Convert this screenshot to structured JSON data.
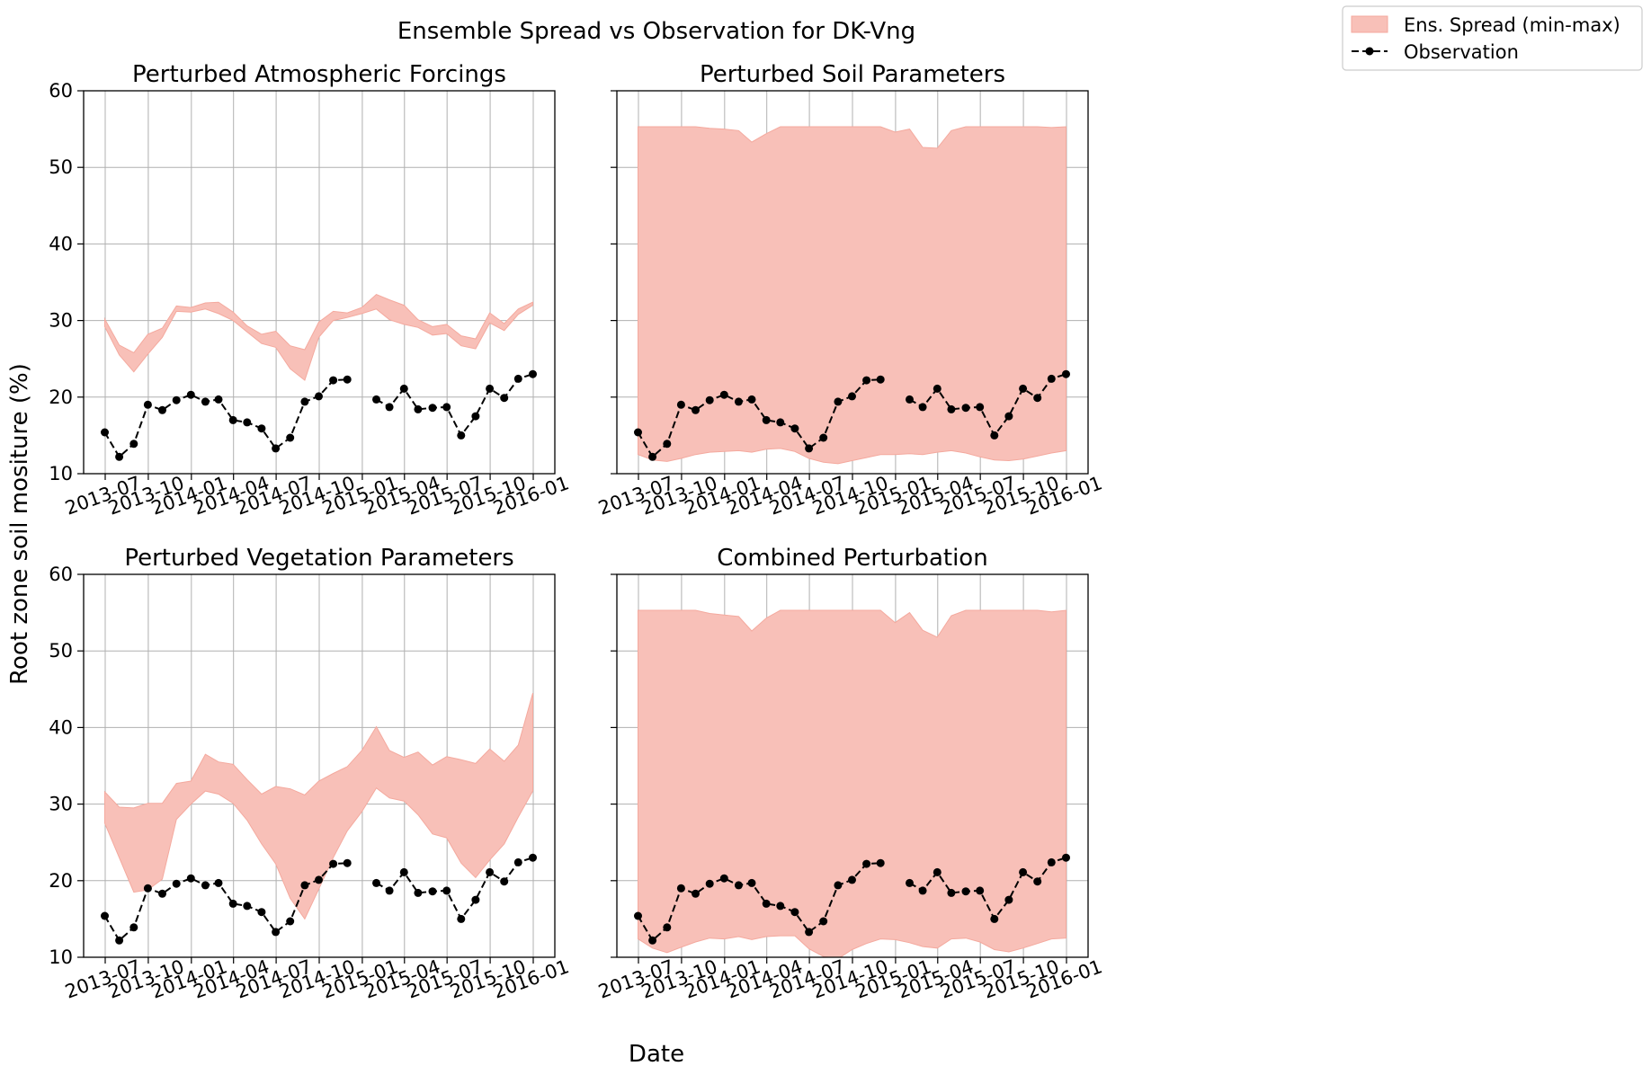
{
  "figure": {
    "suptitle": "Ensemble Spread vs Observation for DK-Vng",
    "xlabel": "Date",
    "ylabel": "Root zone soil mositure (%)",
    "legend": {
      "placement": "top-right",
      "entries": [
        {
          "label": "Ens. Spread (min-max)",
          "kind": "band",
          "color": "#f8c0b8",
          "edge": "#f4a99e"
        },
        {
          "label": "Observation",
          "kind": "line-marker",
          "color": "#000000"
        }
      ]
    }
  },
  "chart_data": [
    {
      "type": "area",
      "title": "Perturbed Atmospheric Forcings",
      "xlabel": "",
      "ylabel": "",
      "ylim": [
        10,
        60
      ],
      "yticks": [
        "10",
        "20",
        "30",
        "40",
        "50",
        "60"
      ],
      "xticks": [
        "2013-07",
        "2013-10",
        "2014-01",
        "2014-04",
        "2014-07",
        "2014-10",
        "2015-01",
        "2015-04",
        "2015-07",
        "2015-10",
        "2016-01"
      ],
      "grid": true,
      "x": [
        "2013-06-30",
        "2013-07-31",
        "2013-08-31",
        "2013-09-30",
        "2013-10-31",
        "2013-11-30",
        "2013-12-31",
        "2014-01-31",
        "2014-02-28",
        "2014-03-31",
        "2014-04-30",
        "2014-05-31",
        "2014-06-30",
        "2014-07-31",
        "2014-08-31",
        "2014-09-30",
        "2014-10-31",
        "2014-11-30",
        "2014-12-31",
        "2015-01-31",
        "2015-02-28",
        "2015-03-31",
        "2015-04-30",
        "2015-05-31",
        "2015-06-30",
        "2015-07-31",
        "2015-08-31",
        "2015-09-30",
        "2015-10-31",
        "2015-11-30",
        "2015-12-31"
      ],
      "series": [
        {
          "name": "Ens. Spread (min-max)",
          "kind": "band",
          "upper": [
            30.2,
            26.8,
            25.8,
            28.2,
            29.0,
            31.9,
            31.7,
            32.3,
            32.4,
            31.1,
            29.3,
            28.2,
            28.6,
            26.7,
            26.2,
            29.8,
            31.2,
            31.0,
            31.7,
            33.4,
            32.7,
            32.0,
            30.1,
            29.2,
            29.5,
            28.0,
            27.6,
            31.0,
            29.6,
            31.5,
            32.4
          ],
          "lower": [
            29.2,
            25.5,
            23.3,
            25.6,
            27.8,
            31.2,
            31.1,
            31.5,
            30.9,
            30.0,
            28.5,
            27.0,
            26.5,
            23.7,
            22.2,
            27.8,
            30.0,
            30.4,
            30.9,
            31.5,
            30.1,
            29.5,
            29.1,
            28.1,
            28.3,
            26.7,
            26.3,
            29.7,
            28.7,
            30.8,
            32.0
          ]
        },
        {
          "name": "Observation",
          "kind": "line",
          "values": [
            15.4,
            12.2,
            13.9,
            19.0,
            18.3,
            19.6,
            20.3,
            19.4,
            19.7,
            17.0,
            16.7,
            15.9,
            13.3,
            14.7,
            19.4,
            20.1,
            22.2,
            22.3,
            null,
            19.7,
            18.7,
            21.1,
            18.4,
            18.6,
            18.7,
            15.0,
            17.5,
            21.1,
            19.9,
            22.4,
            23.0
          ]
        }
      ]
    },
    {
      "type": "area",
      "title": "Perturbed Soil Parameters",
      "xlabel": "",
      "ylabel": "",
      "ylim": [
        10,
        60
      ],
      "yticks": [],
      "xticks": [
        "2013-07",
        "2013-10",
        "2014-01",
        "2014-04",
        "2014-07",
        "2014-10",
        "2015-01",
        "2015-04",
        "2015-07",
        "2015-10",
        "2016-01"
      ],
      "grid": true,
      "x": [
        "2013-06-30",
        "2013-07-31",
        "2013-08-31",
        "2013-09-30",
        "2013-10-31",
        "2013-11-30",
        "2013-12-31",
        "2014-01-31",
        "2014-02-28",
        "2014-03-31",
        "2014-04-30",
        "2014-05-31",
        "2014-06-30",
        "2014-07-31",
        "2014-08-31",
        "2014-09-30",
        "2014-10-31",
        "2014-11-30",
        "2014-12-31",
        "2015-01-31",
        "2015-02-28",
        "2015-03-31",
        "2015-04-30",
        "2015-05-31",
        "2015-06-30",
        "2015-07-31",
        "2015-08-31",
        "2015-09-30",
        "2015-10-31",
        "2015-11-30",
        "2015-12-31"
      ],
      "series": [
        {
          "name": "Ens. Spread (min-max)",
          "kind": "band",
          "upper": [
            55.3,
            55.3,
            55.3,
            55.3,
            55.3,
            55.1,
            55.0,
            54.8,
            53.3,
            54.4,
            55.3,
            55.3,
            55.3,
            55.3,
            55.3,
            55.3,
            55.3,
            55.3,
            54.6,
            55.0,
            52.6,
            52.5,
            54.8,
            55.3,
            55.3,
            55.3,
            55.3,
            55.3,
            55.3,
            55.2,
            55.3
          ],
          "lower": [
            12.5,
            11.8,
            11.6,
            12.0,
            12.5,
            12.8,
            12.9,
            13.0,
            12.8,
            13.2,
            13.3,
            12.9,
            12.0,
            11.5,
            11.3,
            11.7,
            12.1,
            12.5,
            12.5,
            12.6,
            12.5,
            12.8,
            13.0,
            12.7,
            12.2,
            11.8,
            11.7,
            11.9,
            12.3,
            12.7,
            13.0
          ]
        },
        {
          "name": "Observation",
          "kind": "line",
          "values": [
            15.4,
            12.2,
            13.9,
            19.0,
            18.3,
            19.6,
            20.3,
            19.4,
            19.7,
            17.0,
            16.7,
            15.9,
            13.3,
            14.7,
            19.4,
            20.1,
            22.2,
            22.3,
            null,
            19.7,
            18.7,
            21.1,
            18.4,
            18.6,
            18.7,
            15.0,
            17.5,
            21.1,
            19.9,
            22.4,
            23.0
          ]
        }
      ]
    },
    {
      "type": "area",
      "title": "Perturbed Vegetation Parameters",
      "xlabel": "",
      "ylabel": "",
      "ylim": [
        10,
        60
      ],
      "yticks": [
        "10",
        "20",
        "30",
        "40",
        "50",
        "60"
      ],
      "xticks": [
        "2013-07",
        "2013-10",
        "2014-01",
        "2014-04",
        "2014-07",
        "2014-10",
        "2015-01",
        "2015-04",
        "2015-07",
        "2015-10",
        "2016-01"
      ],
      "grid": true,
      "x": [
        "2013-06-30",
        "2013-07-31",
        "2013-08-31",
        "2013-09-30",
        "2013-10-31",
        "2013-11-30",
        "2013-12-31",
        "2014-01-31",
        "2014-02-28",
        "2014-03-31",
        "2014-04-30",
        "2014-05-31",
        "2014-06-30",
        "2014-07-31",
        "2014-08-31",
        "2014-09-30",
        "2014-10-31",
        "2014-11-30",
        "2014-12-31",
        "2015-01-31",
        "2015-02-28",
        "2015-03-31",
        "2015-04-30",
        "2015-05-31",
        "2015-06-30",
        "2015-07-31",
        "2015-08-31",
        "2015-09-30",
        "2015-10-31",
        "2015-11-30",
        "2015-12-31"
      ],
      "series": [
        {
          "name": "Ens. Spread (min-max)",
          "kind": "band",
          "upper": [
            31.6,
            29.6,
            29.5,
            30.1,
            30.1,
            32.7,
            33.0,
            36.5,
            35.5,
            35.2,
            33.2,
            31.3,
            32.3,
            32.0,
            31.2,
            33.0,
            34.0,
            34.9,
            37.0,
            40.1,
            37.0,
            36.1,
            36.8,
            35.1,
            36.2,
            35.8,
            35.3,
            37.2,
            35.6,
            37.7,
            44.5
          ],
          "lower": [
            27.5,
            23.0,
            18.5,
            18.8,
            20.2,
            28.0,
            30.0,
            31.7,
            31.3,
            30.1,
            27.9,
            24.8,
            22.2,
            17.7,
            15.0,
            18.9,
            23.0,
            26.5,
            29.0,
            32.1,
            30.8,
            30.4,
            28.6,
            26.1,
            25.6,
            22.3,
            20.4,
            22.7,
            24.8,
            28.3,
            31.7
          ]
        },
        {
          "name": "Observation",
          "kind": "line",
          "values": [
            15.4,
            12.2,
            13.9,
            19.0,
            18.3,
            19.6,
            20.3,
            19.4,
            19.7,
            17.0,
            16.7,
            15.9,
            13.3,
            14.7,
            19.4,
            20.1,
            22.2,
            22.3,
            null,
            19.7,
            18.7,
            21.1,
            18.4,
            18.6,
            18.7,
            15.0,
            17.5,
            21.1,
            19.9,
            22.4,
            23.0
          ]
        }
      ]
    },
    {
      "type": "area",
      "title": "Combined Perturbation",
      "xlabel": "",
      "ylabel": "",
      "ylim": [
        10,
        60
      ],
      "yticks": [],
      "xticks": [
        "2013-07",
        "2013-10",
        "2014-01",
        "2014-04",
        "2014-07",
        "2014-10",
        "2015-01",
        "2015-04",
        "2015-07",
        "2015-10",
        "2016-01"
      ],
      "grid": true,
      "x": [
        "2013-06-30",
        "2013-07-31",
        "2013-08-31",
        "2013-09-30",
        "2013-10-31",
        "2013-11-30",
        "2013-12-31",
        "2014-01-31",
        "2014-02-28",
        "2014-03-31",
        "2014-04-30",
        "2014-05-31",
        "2014-06-30",
        "2014-07-31",
        "2014-08-31",
        "2014-09-30",
        "2014-10-31",
        "2014-11-30",
        "2014-12-31",
        "2015-01-31",
        "2015-02-28",
        "2015-03-31",
        "2015-04-30",
        "2015-05-31",
        "2015-06-30",
        "2015-07-31",
        "2015-08-31",
        "2015-09-30",
        "2015-10-31",
        "2015-11-30",
        "2015-12-31"
      ],
      "series": [
        {
          "name": "Ens. Spread (min-max)",
          "kind": "band",
          "upper": [
            55.3,
            55.3,
            55.3,
            55.3,
            55.3,
            54.9,
            54.7,
            54.5,
            52.6,
            54.3,
            55.3,
            55.3,
            55.3,
            55.3,
            55.3,
            55.3,
            55.3,
            55.3,
            53.7,
            55.0,
            52.7,
            51.8,
            54.6,
            55.3,
            55.3,
            55.3,
            55.3,
            55.3,
            55.3,
            55.1,
            55.3
          ],
          "lower": [
            12.4,
            11.2,
            10.6,
            11.3,
            12.0,
            12.5,
            12.4,
            12.7,
            12.3,
            12.7,
            12.8,
            12.8,
            11.1,
            10.1,
            9.8,
            11.0,
            11.8,
            12.4,
            12.3,
            11.9,
            11.4,
            11.2,
            12.4,
            12.5,
            12.0,
            11.0,
            10.7,
            11.2,
            11.8,
            12.4,
            12.5
          ]
        },
        {
          "name": "Observation",
          "kind": "line",
          "values": [
            15.4,
            12.2,
            13.9,
            19.0,
            18.3,
            19.6,
            20.3,
            19.4,
            19.7,
            17.0,
            16.7,
            15.9,
            13.3,
            14.7,
            19.4,
            20.1,
            22.2,
            22.3,
            null,
            19.7,
            18.7,
            21.1,
            18.4,
            18.6,
            18.7,
            15.0,
            17.5,
            21.1,
            19.9,
            22.4,
            23.0
          ]
        }
      ]
    }
  ]
}
